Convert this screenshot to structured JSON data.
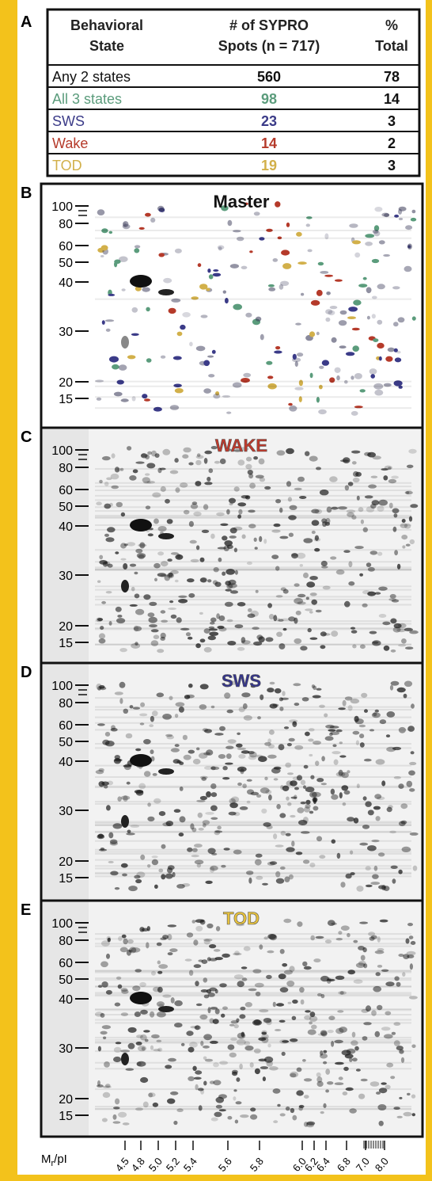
{
  "table": {
    "panel_label": "A",
    "headers": [
      [
        "Behavioral",
        "State"
      ],
      [
        "# of SYPRO",
        "Spots (n = 717)"
      ],
      [
        "%",
        "Total"
      ]
    ],
    "rows": [
      {
        "state": "Any 2 states",
        "spots": 560,
        "percent": 78,
        "color": "#111111"
      },
      {
        "state": "All 3 states",
        "spots": 98,
        "percent": 14,
        "color": "#5b9c7c"
      },
      {
        "state": "SWS",
        "spots": 23,
        "percent": 3,
        "color": "#3b3b88"
      },
      {
        "state": "Wake",
        "spots": 14,
        "percent": 2,
        "color": "#b53a2a"
      },
      {
        "state": "TOD",
        "spots": 19,
        "percent": 3,
        "color": "#d2b04a"
      }
    ]
  },
  "panels": [
    {
      "label": "B",
      "title": "Master",
      "title_color": "#111111",
      "mw_labels": [
        100,
        80,
        60,
        50,
        40,
        30,
        20,
        15
      ]
    },
    {
      "label": "C",
      "title": "WAKE",
      "title_color": "#c0392b",
      "mw_labels": [
        100,
        80,
        60,
        50,
        40,
        30,
        20,
        15
      ]
    },
    {
      "label": "D",
      "title": "SWS",
      "title_color": "#34348c",
      "mw_labels": [
        100,
        80,
        60,
        50,
        40,
        30,
        20,
        15
      ]
    },
    {
      "label": "E",
      "title": "TOD",
      "title_color": "#e6c13c",
      "mw_labels": [
        100,
        80,
        60,
        50,
        40,
        30,
        20,
        15
      ]
    }
  ],
  "pi_axis": {
    "label": {
      "base": "M",
      "subscript": "r",
      "suffix": "/pI"
    },
    "ticks": [
      "4.5",
      "4.8",
      "5.0",
      "5.2",
      "5.4",
      "5.6",
      "5.8",
      "6.0",
      "6.2",
      "6.4",
      "6.8",
      "7.0",
      "8.0"
    ]
  }
}
